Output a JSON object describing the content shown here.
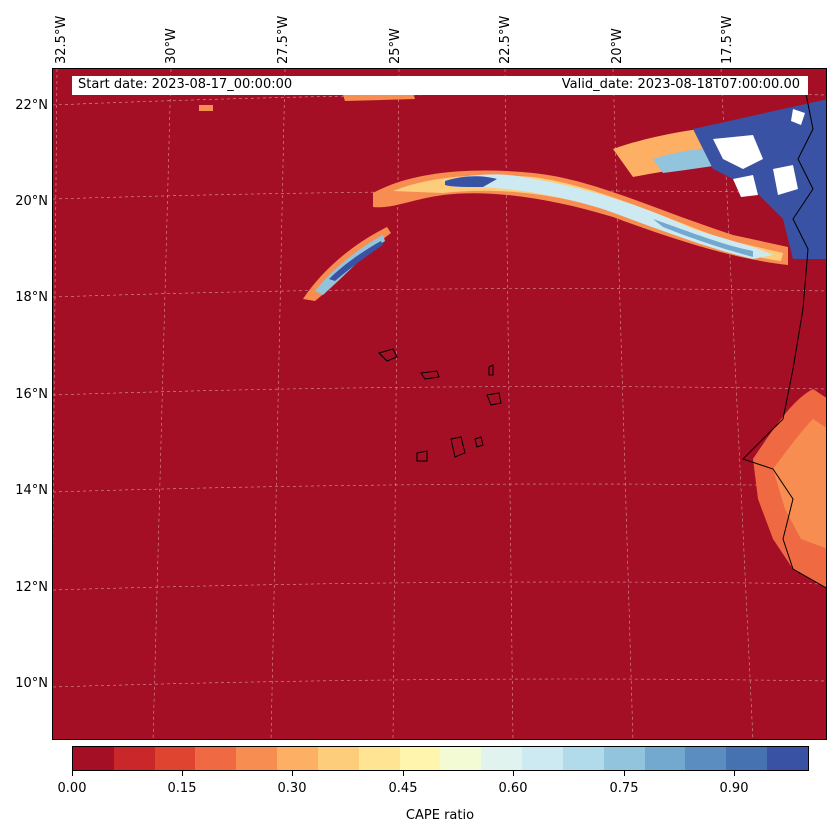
{
  "map": {
    "start_date": "Start date: 2023-08-17_00:00:00",
    "valid_date": "Valid_date: 2023-08-18T07:00:00.00",
    "lon_labels": [
      "32.5°W",
      "30°W",
      "27.5°W",
      "25°W",
      "22.5°W",
      "20°W",
      "17.5°W"
    ],
    "lat_labels": [
      "22°N",
      "20°N",
      "18°N",
      "16°N",
      "14°N",
      "12°N",
      "10°N"
    ],
    "background_color": "#a50f26"
  },
  "colorbar": {
    "label": "CAPE ratio",
    "tick_labels": [
      "0.00",
      "0.15",
      "0.30",
      "0.45",
      "0.60",
      "0.75",
      "0.90"
    ],
    "colors": [
      "#a50f26",
      "#c9272a",
      "#df4430",
      "#ef6a42",
      "#f88d52",
      "#fdb064",
      "#fecd7c",
      "#fee493",
      "#fff5ac",
      "#f3fbd4",
      "#e1f3ef",
      "#cde9f2",
      "#b1dbea",
      "#92c4de",
      "#74a9cf",
      "#5b8dc1",
      "#4672b1",
      "#3a52a3"
    ]
  }
}
